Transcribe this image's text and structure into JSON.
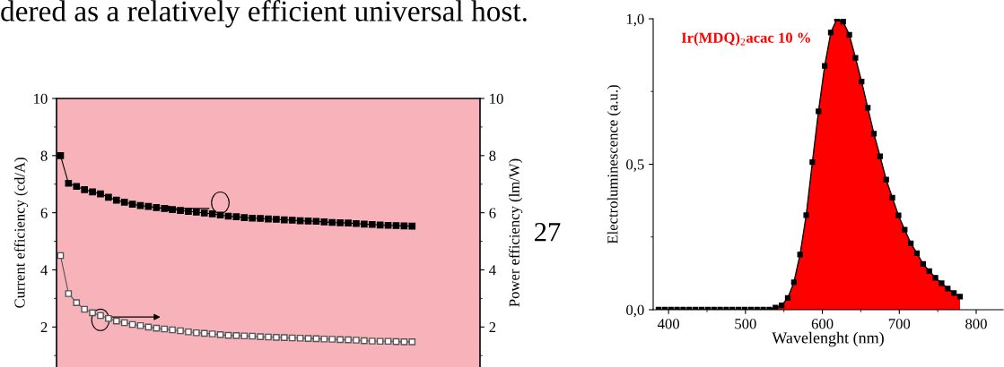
{
  "chart_data": [
    {
      "type": "line",
      "ylabel": "Current efficiency (cd/A)",
      "y2label": "Power efficiency (lm/W)",
      "categories": [
        null,
        null,
        null,
        null,
        null,
        null,
        null,
        null,
        null,
        null,
        null,
        null,
        null,
        null,
        null,
        null,
        null,
        null,
        null,
        null,
        null,
        null,
        null,
        null,
        null,
        null,
        null,
        null,
        null,
        null,
        null,
        null,
        null,
        null,
        null,
        null,
        null,
        null,
        null,
        null,
        null,
        null,
        null,
        null,
        null,
        null,
        null,
        null,
        null,
        null,
        null,
        null,
        null
      ],
      "series": [
        {
          "color": "#000000",
          "values": [
            8.0,
            7.03,
            6.92,
            6.81,
            6.73,
            6.66,
            6.54,
            6.44,
            6.37,
            6.3,
            6.25,
            6.22,
            6.18,
            6.15,
            6.11,
            6.08,
            6.05,
            6.02,
            5.99,
            5.96,
            5.92,
            5.88,
            5.86,
            5.83,
            5.81,
            5.8,
            5.78,
            5.77,
            5.75,
            5.74,
            5.72,
            5.71,
            5.7,
            5.68,
            5.66,
            5.65,
            5.64,
            5.62,
            5.6,
            5.59,
            5.57,
            5.56,
            5.55,
            5.54,
            5.53,
            null,
            null,
            null,
            null,
            null,
            null,
            null,
            null
          ]
        },
        {
          "color": "#555555",
          "axis": "y2",
          "values": [
            4.5,
            3.17,
            2.85,
            2.62,
            2.5,
            2.4,
            2.3,
            2.21,
            2.15,
            2.09,
            2.05,
            2.0,
            1.96,
            1.93,
            1.9,
            1.87,
            1.83,
            1.8,
            1.78,
            1.76,
            1.73,
            1.71,
            1.7,
            1.69,
            1.68,
            1.66,
            1.65,
            1.64,
            1.63,
            1.62,
            1.61,
            1.6,
            1.59,
            1.58,
            1.57,
            1.56,
            1.55,
            1.54,
            1.52,
            1.51,
            1.5,
            1.5,
            1.49,
            1.48,
            1.48,
            null,
            null,
            null,
            null,
            null,
            null,
            null,
            null
          ]
        }
      ],
      "ylim": [
        0.6,
        10
      ],
      "yticks": [
        2,
        4,
        6,
        8,
        10
      ],
      "y2lim": [
        0.6,
        10
      ],
      "y2ticks": [
        2,
        4,
        6,
        8,
        10
      ],
      "marker": "square",
      "line_style": "solid",
      "grid": false,
      "legend": false,
      "annotations": [
        "dered as a relatively efficient universal host.",
        "27"
      ]
    },
    {
      "type": "area",
      "xlabel": "Wavelenght (nm)",
      "ylabel": "Electroluminescence (a.u.)",
      "x": [
        387,
        395,
        403,
        411,
        419,
        427,
        435,
        443,
        451,
        459,
        467,
        475,
        483,
        491,
        499,
        507,
        515,
        523,
        531,
        539,
        547,
        555,
        563,
        571,
        579,
        587,
        595,
        603,
        611,
        619,
        627,
        635,
        643,
        651,
        659,
        667,
        675,
        683,
        691,
        699,
        707,
        715,
        723,
        731,
        739,
        747,
        755,
        763,
        771,
        779
      ],
      "series": [
        {
          "name": "Ir(MDQ)$_{2}$acac 10 %",
          "color": "#ff0000",
          "values": [
            0,
            0,
            0,
            0,
            0,
            0,
            0,
            0,
            0,
            0,
            0,
            0,
            0,
            0,
            0,
            0,
            0,
            0,
            0,
            0.007,
            0.015,
            0.04,
            0.094,
            0.19,
            0.325,
            0.507,
            0.682,
            0.838,
            0.953,
            1.0,
            0.99,
            0.945,
            0.866,
            0.784,
            0.694,
            0.605,
            0.527,
            0.447,
            0.385,
            0.324,
            0.275,
            0.228,
            0.194,
            0.157,
            0.133,
            0.11,
            0.091,
            0.073,
            0.057,
            0.045
          ]
        }
      ],
      "xlim": [
        380,
        835
      ],
      "xticks": [
        400,
        500,
        600,
        700,
        800
      ],
      "ylim": [
        0,
        1.0
      ],
      "yticks": [
        {
          "value": 0,
          "label": "0,0"
        },
        {
          "value": 0.5,
          "label": "0,5"
        },
        {
          "value": 1.0,
          "label": "1,0"
        }
      ],
      "marker": "square",
      "line_style": "solid",
      "grid": false,
      "legend": false
    }
  ]
}
